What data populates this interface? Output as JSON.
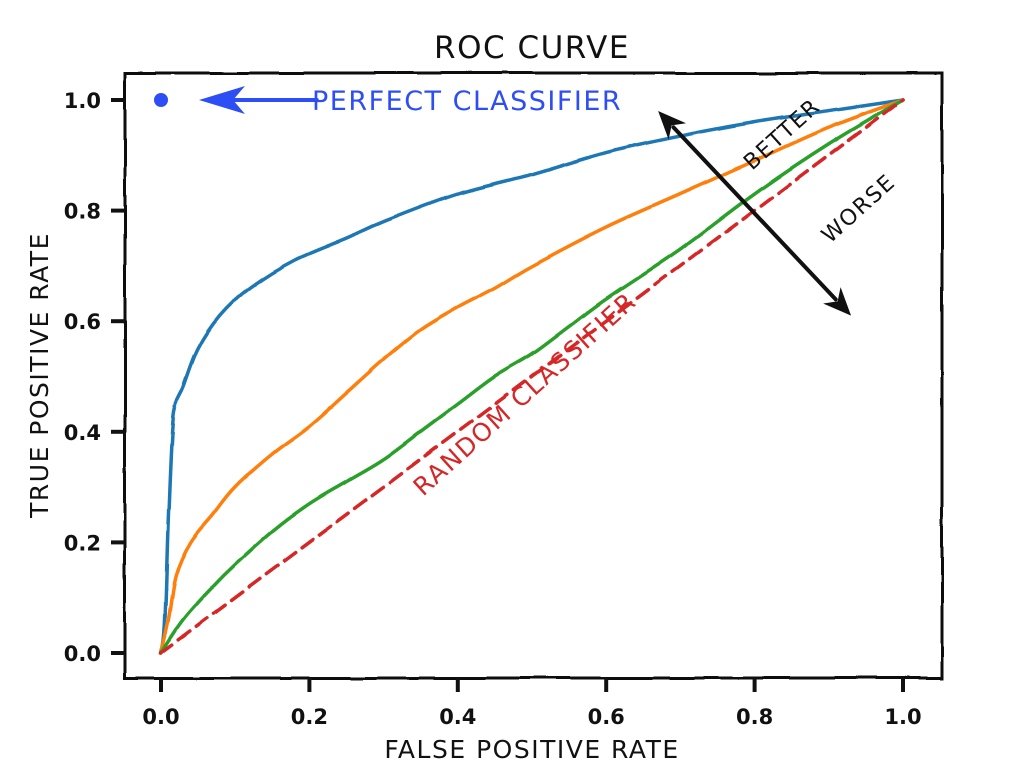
{
  "chart_data": {
    "type": "line",
    "title": "ROC CURVE",
    "xlabel": "FALSE POSITIVE RATE",
    "ylabel": "TRUE POSITIVE RATE",
    "xlim": [
      0.0,
      1.0
    ],
    "ylim": [
      0.0,
      1.0
    ],
    "xticks": [
      "0.0",
      "0.2",
      "0.4",
      "0.6",
      "0.8",
      "1.0"
    ],
    "yticks": [
      "0.0",
      "0.2",
      "0.4",
      "0.6",
      "0.8",
      "1.0"
    ],
    "grid": false,
    "style": "xkcd",
    "series": [
      {
        "color": "#1f77b4",
        "line_style": "solid",
        "points": [
          [
            0.0,
            0.0
          ],
          [
            0.005,
            0.05
          ],
          [
            0.01,
            0.25
          ],
          [
            0.015,
            0.4
          ],
          [
            0.02,
            0.45
          ],
          [
            0.03,
            0.48
          ],
          [
            0.05,
            0.55
          ],
          [
            0.08,
            0.61
          ],
          [
            0.12,
            0.66
          ],
          [
            0.18,
            0.71
          ],
          [
            0.25,
            0.75
          ],
          [
            0.3,
            0.78
          ],
          [
            0.4,
            0.83
          ],
          [
            0.5,
            0.865
          ],
          [
            0.6,
            0.905
          ],
          [
            0.7,
            0.935
          ],
          [
            0.8,
            0.96
          ],
          [
            0.9,
            0.98
          ],
          [
            1.0,
            1.0
          ]
        ]
      },
      {
        "color": "#ff7f0e",
        "line_style": "solid",
        "points": [
          [
            0.0,
            0.0
          ],
          [
            0.01,
            0.06
          ],
          [
            0.02,
            0.14
          ],
          [
            0.04,
            0.2
          ],
          [
            0.07,
            0.25
          ],
          [
            0.1,
            0.3
          ],
          [
            0.15,
            0.36
          ],
          [
            0.2,
            0.41
          ],
          [
            0.25,
            0.47
          ],
          [
            0.3,
            0.53
          ],
          [
            0.35,
            0.585
          ],
          [
            0.4,
            0.625
          ],
          [
            0.45,
            0.66
          ],
          [
            0.5,
            0.7
          ],
          [
            0.6,
            0.77
          ],
          [
            0.7,
            0.83
          ],
          [
            0.8,
            0.89
          ],
          [
            0.9,
            0.95
          ],
          [
            1.0,
            1.0
          ]
        ]
      },
      {
        "color": "#2ca02c",
        "line_style": "solid",
        "points": [
          [
            0.0,
            0.0
          ],
          [
            0.03,
            0.06
          ],
          [
            0.07,
            0.12
          ],
          [
            0.1,
            0.16
          ],
          [
            0.15,
            0.22
          ],
          [
            0.2,
            0.27
          ],
          [
            0.25,
            0.31
          ],
          [
            0.3,
            0.35
          ],
          [
            0.35,
            0.4
          ],
          [
            0.4,
            0.45
          ],
          [
            0.45,
            0.5
          ],
          [
            0.5,
            0.54
          ],
          [
            0.55,
            0.59
          ],
          [
            0.6,
            0.64
          ],
          [
            0.7,
            0.73
          ],
          [
            0.8,
            0.83
          ],
          [
            0.9,
            0.92
          ],
          [
            1.0,
            1.0
          ]
        ]
      },
      {
        "name": "RANDOM CLASSIFIER",
        "color": "#d62728",
        "line_style": "dashed",
        "points": [
          [
            0.0,
            0.0
          ],
          [
            1.0,
            1.0
          ]
        ]
      }
    ],
    "markers": [
      {
        "name": "PERFECT CLASSIFIER",
        "x": 0.0,
        "y": 1.0,
        "color": "#2e4ef5"
      }
    ],
    "annotations": [
      {
        "text": "PERFECT CLASSIFIER",
        "color": "#2e4ef5",
        "points_to": [
          0.0,
          1.0
        ],
        "arrow_from": [
          0.21,
          1.0
        ]
      },
      {
        "text": "RANDOM CLASSIFIER",
        "color": "#d62728",
        "rotation_deg": -42
      },
      {
        "text": "BETTER",
        "color": "#111111",
        "rotation_deg": -42
      },
      {
        "text": "WORSE",
        "color": "#111111",
        "rotation_deg": -42
      }
    ],
    "double_arrow": {
      "from": [
        0.67,
        0.98
      ],
      "to": [
        0.93,
        0.61
      ],
      "color": "#111111"
    }
  }
}
